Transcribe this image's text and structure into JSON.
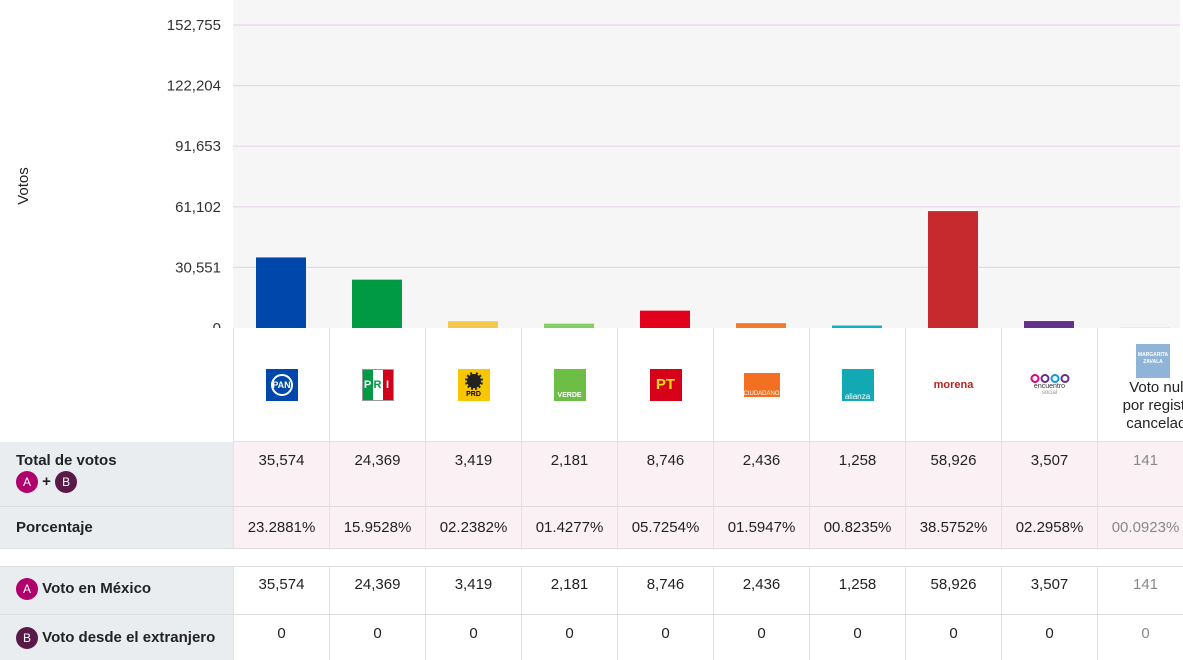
{
  "chart_data": {
    "type": "bar",
    "ylabel": "Votos",
    "ylim": [
      0,
      152755
    ],
    "yticks": [
      0,
      30551,
      61102,
      91653,
      122204,
      152755
    ],
    "ytick_labels": [
      "0",
      "30,551",
      "61,102",
      "91,653",
      "122,204",
      "152,755"
    ],
    "categories": [
      "PAN",
      "PRI",
      "PRD",
      "VERDE",
      "PT",
      "MOVIMIENTO CIUDADANO",
      "NUEVA ALIANZA",
      "morena",
      "encuentro social",
      "Voto nulo por registro cancelado"
    ],
    "values": [
      35574,
      24369,
      3419,
      2181,
      8746,
      2436,
      1258,
      58926,
      3507,
      141
    ],
    "colors": [
      "#0047ab",
      "#009a44",
      "#f2c94c",
      "#84cf5f",
      "#e3001b",
      "#f47a2a",
      "#12b3c0",
      "#c6292e",
      "#662d8a",
      "#cccccc"
    ]
  },
  "parties": {
    "pan": "PAN",
    "pri": [
      "P",
      "R",
      "I"
    ],
    "prd": "PRD",
    "verde": "VERDE",
    "pt": "PT",
    "mc": "CIUDADANO",
    "alianza": "alianza",
    "morena": "morena",
    "encuentro": "encuentro",
    "encuentro_sub": "social",
    "margarita": "MARGARITA ZAVALA",
    "nulo_label": [
      "Voto nulo",
      "por registro",
      "cancelado"
    ]
  },
  "table": {
    "total_label": "Total de votos",
    "badge_a": "A",
    "badge_b": "B",
    "plus": "+",
    "porcentaje_label": "Porcentaje",
    "mexico_label": "Voto en México",
    "extranjero_label": "Voto desde el extranjero",
    "totals": [
      "35,574",
      "24,369",
      "3,419",
      "2,181",
      "8,746",
      "2,436",
      "1,258",
      "58,926",
      "3,507",
      "141"
    ],
    "percentages": [
      "23.2881%",
      "15.9528%",
      "02.2382%",
      "01.4277%",
      "05.7254%",
      "01.5947%",
      "00.8235%",
      "38.5752%",
      "02.2958%",
      "00.0923%"
    ],
    "mexico": [
      "35,574",
      "24,369",
      "3,419",
      "2,181",
      "8,746",
      "2,436",
      "1,258",
      "58,926",
      "3,507",
      "141"
    ],
    "extranjero": [
      "0",
      "0",
      "0",
      "0",
      "0",
      "0",
      "0",
      "0",
      "0",
      "0"
    ]
  }
}
